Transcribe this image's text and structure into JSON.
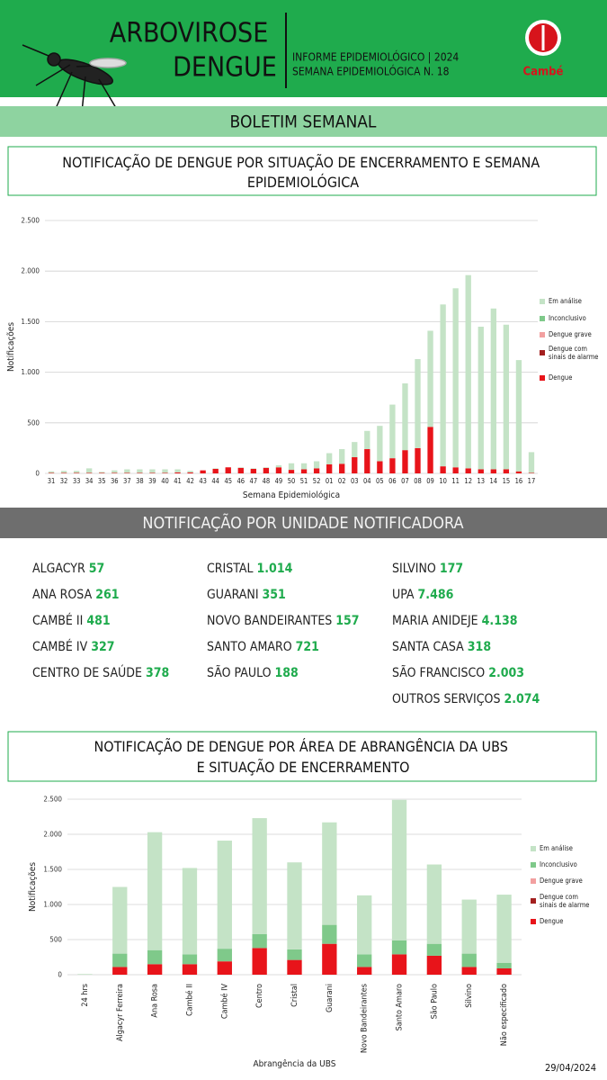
{
  "header": {
    "title_line1": "ARBOVIROSE",
    "title_line2": "DENGUE",
    "info_line1": "INFORME EPIDEMIOLÓGICO | 2024",
    "info_line2": "SEMANA EPIDEMIOLÓGICA  N. 18",
    "logo": "Cambé",
    "banner": "BOLETIM SEMANAL"
  },
  "units_title": "NOTIFICAÇÃO POR UNIDADE NOTIFICADORA",
  "units": [
    [
      {
        "name": "ALGACYR",
        "value": "57"
      },
      {
        "name": "ANA ROSA",
        "value": "261"
      },
      {
        "name": "CAMBÉ II",
        "value": "481"
      },
      {
        "name": "CAMBÉ IV",
        "value": "327"
      },
      {
        "name": "CENTRO DE SAÚDE",
        "value": "378"
      }
    ],
    [
      {
        "name": "CRISTAL",
        "value": "1.014"
      },
      {
        "name": "GUARANI",
        "value": "351"
      },
      {
        "name": "NOVO BANDEIRANTES",
        "value": "157"
      },
      {
        "name": "SANTO AMARO",
        "value": "721"
      },
      {
        "name": "SÃO PAULO",
        "value": "188"
      }
    ],
    [
      {
        "name": "SILVINO",
        "value": "177"
      },
      {
        "name": "UPA",
        "value": "7.486"
      },
      {
        "name": "MARIA ANIDEJE",
        "value": "4.138"
      },
      {
        "name": "SANTA CASA",
        "value": "318"
      },
      {
        "name": "SÃO FRANCISCO",
        "value": "2.003"
      },
      {
        "name": "OUTROS SERVIÇOS",
        "value": "2.074"
      }
    ]
  ],
  "date": "29/04/2024",
  "chart_data": [
    {
      "type": "stacked_bar",
      "title": "NOTIFICAÇÃO DE DENGUE POR SITUAÇÃO DE ENCERRAMENTO E SEMANA EPIDEMIOLÓGICA",
      "x_label": "Semana Epidemiológica",
      "y_label": "Notificações",
      "categories": [
        "31",
        "32",
        "33",
        "34",
        "35",
        "36",
        "37",
        "38",
        "39",
        "40",
        "41",
        "42",
        "43",
        "44",
        "45",
        "46",
        "47",
        "48",
        "49",
        "50",
        "51",
        "52",
        "01",
        "02",
        "03",
        "04",
        "05",
        "06",
        "07",
        "08",
        "09",
        "10",
        "11",
        "12",
        "13",
        "14",
        "15",
        "16",
        "17"
      ],
      "series": [
        {
          "name": "Dengue",
          "color": "#e8141a",
          "values": [
            5,
            5,
            5,
            5,
            5,
            5,
            5,
            5,
            5,
            5,
            10,
            10,
            30,
            45,
            60,
            55,
            45,
            55,
            60,
            35,
            40,
            50,
            90,
            95,
            160,
            240,
            120,
            150,
            230,
            250,
            460,
            70,
            60,
            50,
            40,
            40,
            40,
            20,
            5
          ]
        },
        {
          "name": "Dengue com sinais de alarme",
          "color": "#a3201f",
          "values": [
            0,
            0,
            0,
            0,
            0,
            0,
            0,
            0,
            0,
            0,
            0,
            0,
            0,
            0,
            0,
            0,
            0,
            0,
            0,
            0,
            0,
            0,
            0,
            0,
            0,
            0,
            0,
            0,
            0,
            0,
            0,
            0,
            0,
            0,
            0,
            0,
            0,
            0,
            0
          ]
        },
        {
          "name": "Dengue grave",
          "color": "#f2a0a0",
          "values": [
            0,
            0,
            0,
            0,
            0,
            0,
            0,
            0,
            0,
            0,
            0,
            0,
            0,
            0,
            0,
            0,
            0,
            0,
            0,
            0,
            0,
            0,
            0,
            0,
            0,
            0,
            0,
            0,
            0,
            0,
            0,
            0,
            0,
            0,
            0,
            0,
            0,
            0,
            0
          ]
        },
        {
          "name": "Inconclusivo",
          "color": "#7fc98a",
          "values": [
            0,
            0,
            0,
            0,
            0,
            0,
            0,
            0,
            0,
            0,
            0,
            0,
            0,
            0,
            0,
            0,
            0,
            0,
            0,
            0,
            0,
            0,
            0,
            0,
            0,
            0,
            0,
            0,
            0,
            0,
            0,
            0,
            0,
            0,
            0,
            0,
            0,
            0,
            0
          ]
        },
        {
          "name": "Em análise",
          "color": "#c4e3c6",
          "values": [
            15,
            20,
            20,
            45,
            10,
            25,
            35,
            35,
            35,
            35,
            30,
            15,
            0,
            5,
            0,
            5,
            5,
            5,
            20,
            65,
            60,
            70,
            110,
            145,
            150,
            180,
            350,
            530,
            660,
            880,
            950,
            1600,
            1770,
            1910,
            1410,
            1590,
            1430,
            1100,
            205
          ]
        }
      ],
      "ylim": [
        0,
        2500
      ],
      "yticks": [
        {
          "value": 0,
          "label": "0"
        },
        {
          "value": 500,
          "label": "500"
        },
        {
          "value": 1000,
          "label": "1.000"
        },
        {
          "value": 1500,
          "label": "1.500"
        },
        {
          "value": 2000,
          "label": "2.000"
        },
        {
          "value": 2500,
          "label": "2.500"
        }
      ],
      "grid": true,
      "legend": "right"
    },
    {
      "type": "stacked_bar",
      "title": "NOTIFICAÇÃO DE DENGUE POR ÁREA DE ABRANGÊNCIA DA UBS E SITUAÇÃO DE ENCERRAMENTO",
      "x_label": "Abrangência da UBS",
      "y_label": "Notificações",
      "categories": [
        "24 hrs",
        "Algacyr Ferreira",
        "Ana Rosa",
        "Cambé II",
        "Cambé IV",
        "Centro",
        "Cristal",
        "Guarani",
        "Novo Bandeirantes",
        "Santo Amaro",
        "São Paulo",
        "Silvino",
        "Não especificado"
      ],
      "series": [
        {
          "name": "Dengue",
          "color": "#e8141a",
          "values": [
            0,
            110,
            150,
            150,
            190,
            380,
            210,
            440,
            110,
            290,
            270,
            110,
            90
          ]
        },
        {
          "name": "Dengue com sinais de alarme",
          "color": "#a3201f",
          "values": [
            0,
            0,
            0,
            0,
            0,
            0,
            0,
            0,
            0,
            0,
            0,
            0,
            0
          ]
        },
        {
          "name": "Dengue grave",
          "color": "#f2a0a0",
          "values": [
            0,
            0,
            0,
            0,
            0,
            0,
            0,
            0,
            0,
            0,
            0,
            0,
            0
          ]
        },
        {
          "name": "Inconclusivo",
          "color": "#7fc98a",
          "values": [
            0,
            190,
            200,
            140,
            180,
            200,
            150,
            270,
            180,
            200,
            170,
            190,
            80
          ]
        },
        {
          "name": "Em análise",
          "color": "#c4e3c6",
          "values": [
            10,
            950,
            1680,
            1230,
            1540,
            1650,
            1240,
            1460,
            840,
            2000,
            1130,
            770,
            970
          ]
        }
      ],
      "ylim": [
        0,
        2500
      ],
      "yticks": [
        {
          "value": 0,
          "label": "0"
        },
        {
          "value": 500,
          "label": "500"
        },
        {
          "value": 1000,
          "label": "1.000"
        },
        {
          "value": 1500,
          "label": "1.500"
        },
        {
          "value": 2000,
          "label": "2.000"
        },
        {
          "value": 2500,
          "label": "2.500"
        }
      ],
      "grid": true,
      "legend": "right"
    }
  ]
}
